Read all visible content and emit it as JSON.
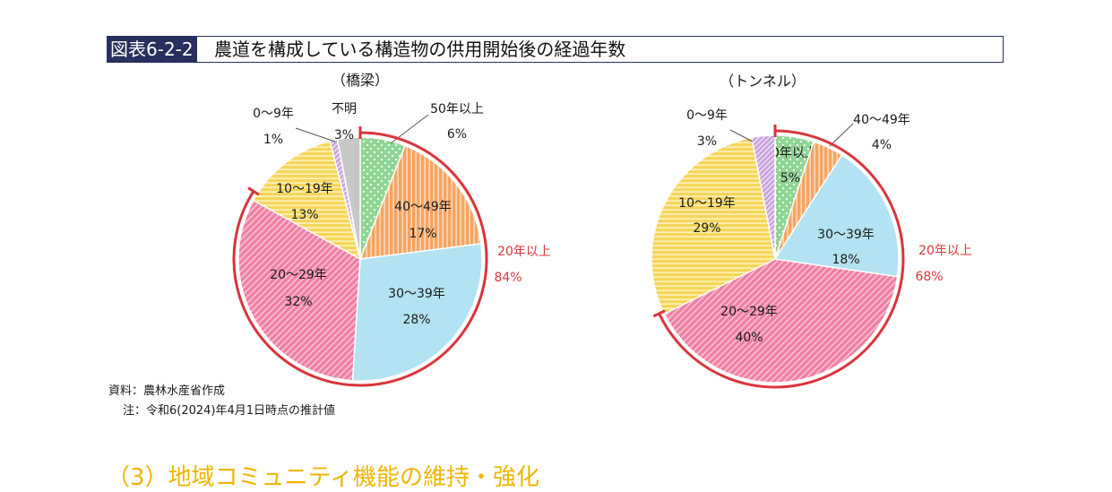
{
  "header": {
    "figure_tag": "図表6-2-2",
    "title": "農道を構成している構造物の供用開始後の経過年数"
  },
  "chart_data": [
    {
      "type": "pie",
      "subtitle": "（橋梁）",
      "slices": [
        {
          "label": "50年以上",
          "value": 6,
          "pct": "6%",
          "color": "#8fd694",
          "pattern": "dots"
        },
        {
          "label": "40～49年",
          "value": 17,
          "pct": "17%",
          "color": "#f5a462",
          "pattern": "vstripes"
        },
        {
          "label": "30～39年",
          "value": 28,
          "pct": "28%",
          "color": "#b3e2f2",
          "pattern": "solid"
        },
        {
          "label": "20～29年",
          "value": 32,
          "pct": "32%",
          "color": "#f07ea3",
          "pattern": "diag"
        },
        {
          "label": "10～19年",
          "value": 13,
          "pct": "13%",
          "color": "#f6d55a",
          "pattern": "hstripes"
        },
        {
          "label": "0～9年",
          "value": 1,
          "pct": "1%",
          "color": "#c9a0dc",
          "pattern": "diag2"
        },
        {
          "label": "不明",
          "value": 3,
          "pct": "3%",
          "color": "#c8c8c8",
          "pattern": "solid"
        }
      ],
      "bracket": {
        "label": "20年以上",
        "pct": "84%",
        "value": 84
      }
    },
    {
      "type": "pie",
      "subtitle": "（トンネル）",
      "slices": [
        {
          "label": "50年以上",
          "value": 5,
          "pct": "5%",
          "color": "#8fd694",
          "pattern": "dots"
        },
        {
          "label": "40～49年",
          "value": 4,
          "pct": "4%",
          "color": "#f5a462",
          "pattern": "vstripes"
        },
        {
          "label": "30～39年",
          "value": 18,
          "pct": "18%",
          "color": "#b3e2f2",
          "pattern": "solid"
        },
        {
          "label": "20～29年",
          "value": 40,
          "pct": "40%",
          "color": "#f07ea3",
          "pattern": "diag"
        },
        {
          "label": "10～19年",
          "value": 29,
          "pct": "29%",
          "color": "#f6d55a",
          "pattern": "hstripes"
        },
        {
          "label": "0～9年",
          "value": 3,
          "pct": "3%",
          "color": "#c9a0dc",
          "pattern": "diag2"
        }
      ],
      "bracket": {
        "label": "20年以上",
        "pct": "68%",
        "value": 68
      }
    }
  ],
  "notes": {
    "source": "資料：農林水産省作成",
    "note": "注：令和6(2024)年4月1日時点の推計値"
  },
  "next_section": "（3）地域コミュニティ機能の維持・強化",
  "colors": {
    "bracket": "#d9353b",
    "title_tag_bg": "#27305e"
  }
}
